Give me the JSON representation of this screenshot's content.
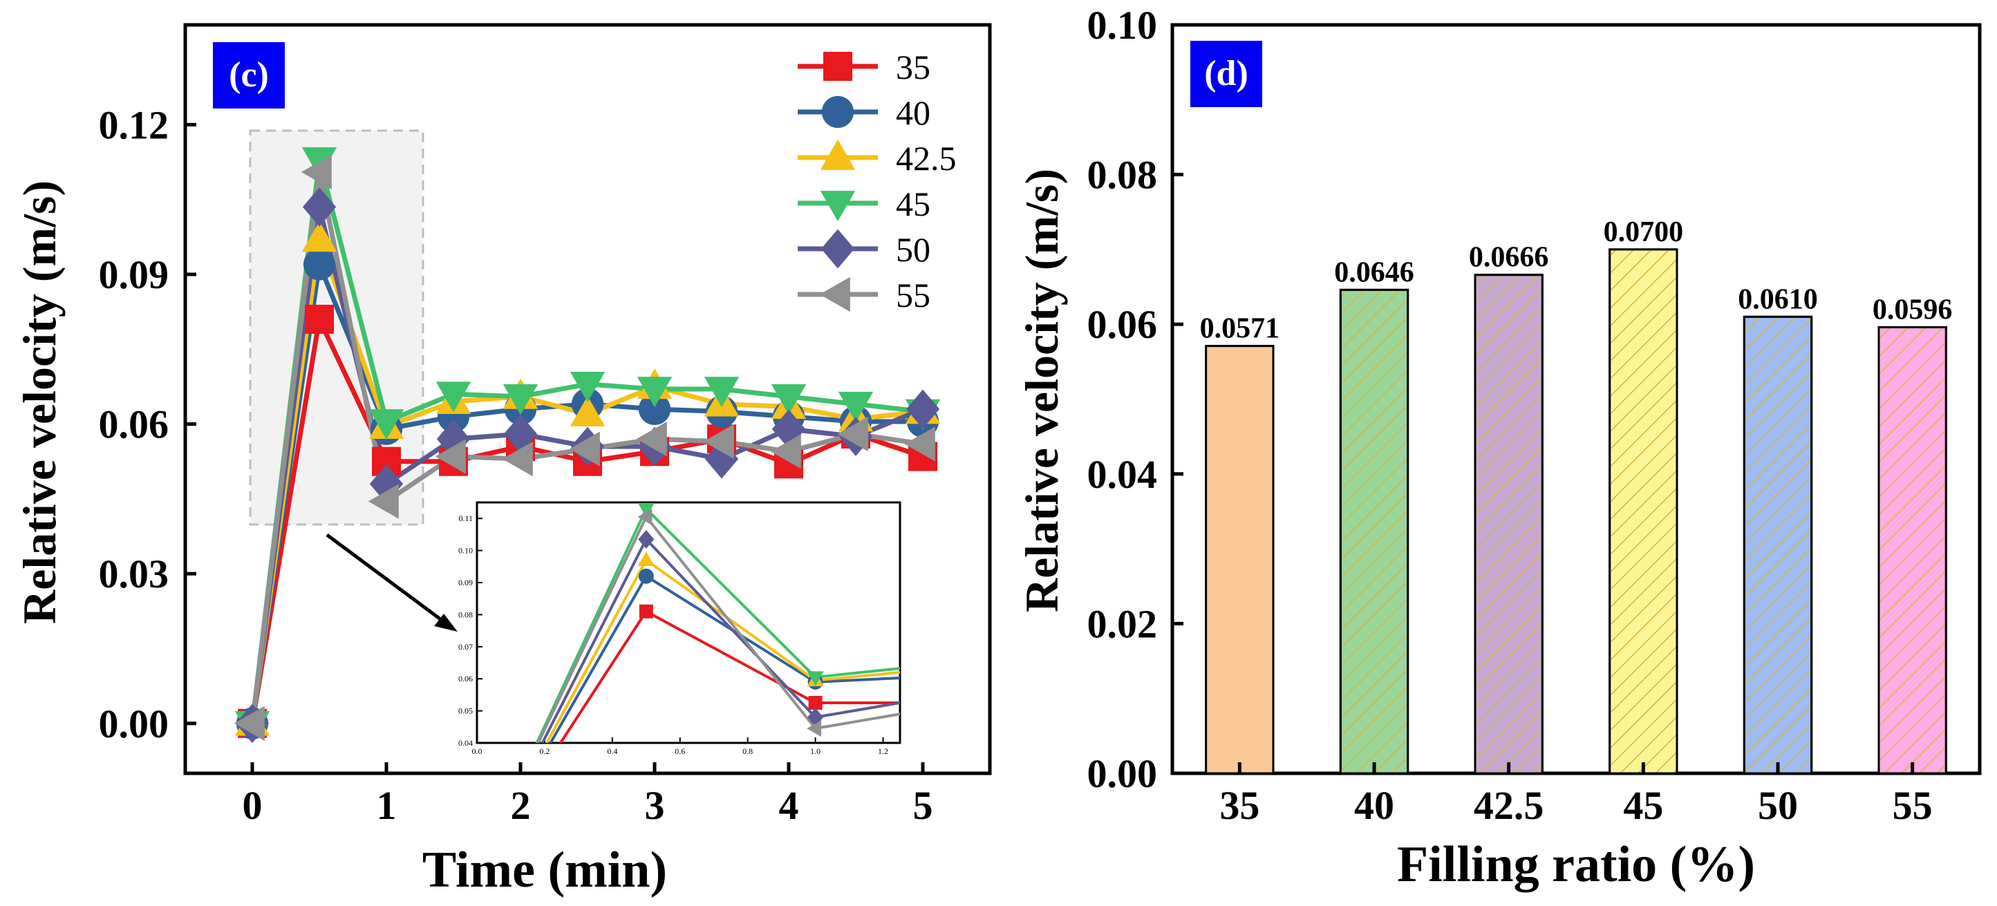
{
  "chart_data": [
    {
      "type": "line",
      "panel_label": "(c)",
      "xlabel": "Time (min)",
      "ylabel": "Relative velocity (m/s)",
      "xlim": [
        -0.5,
        5.5
      ],
      "ylim": [
        -0.01,
        0.14
      ],
      "xticks": [
        "0",
        "1",
        "2",
        "3",
        "4",
        "5"
      ],
      "yticks": [
        "0.00",
        "0.03",
        "0.06",
        "0.09",
        "0.12"
      ],
      "x": [
        0,
        0.5,
        1,
        1.5,
        2,
        2.5,
        3,
        3.5,
        4,
        4.5,
        5
      ],
      "series": [
        {
          "name": "35",
          "color": "#e8191f",
          "marker": "square",
          "values": [
            0,
            0.081,
            0.0525,
            0.0525,
            0.0555,
            0.0525,
            0.0545,
            0.057,
            0.052,
            0.058,
            0.0535
          ]
        },
        {
          "name": "40",
          "color": "#2f6299",
          "marker": "circle",
          "values": [
            0,
            0.092,
            0.059,
            0.0615,
            0.063,
            0.064,
            0.063,
            0.0625,
            0.0615,
            0.0605,
            0.0605
          ]
        },
        {
          "name": "42.5",
          "color": "#f5c017",
          "marker": "triangle-up",
          "values": [
            0,
            0.097,
            0.0595,
            0.0645,
            0.0655,
            0.062,
            0.0675,
            0.064,
            0.0635,
            0.061,
            0.0625
          ]
        },
        {
          "name": "45",
          "color": "#3fc16b",
          "marker": "triangle-down",
          "values": [
            0,
            0.113,
            0.0605,
            0.066,
            0.0655,
            0.068,
            0.067,
            0.067,
            0.0655,
            0.064,
            0.0625
          ]
        },
        {
          "name": "50",
          "color": "#5a5a96",
          "marker": "diamond",
          "values": [
            0,
            0.1035,
            0.048,
            0.057,
            0.058,
            0.0555,
            0.0555,
            0.053,
            0.059,
            0.0575,
            0.063
          ]
        },
        {
          "name": "55",
          "color": "#909090",
          "marker": "triangle-left",
          "values": [
            0,
            0.1105,
            0.0445,
            0.0535,
            0.053,
            0.055,
            0.057,
            0.0565,
            0.0545,
            0.058,
            0.056
          ]
        }
      ],
      "inset": {
        "xlim": [
          0,
          1.25
        ],
        "ylim": [
          0.04,
          0.115
        ],
        "xticks": [
          "0.0",
          "0.2",
          "0.4",
          "0.6",
          "0.8",
          "1.0",
          "1.2"
        ],
        "yticks": [
          "0.04",
          "0.05",
          "0.06",
          "0.07",
          "0.08",
          "0.09",
          "0.10",
          "0.11"
        ]
      }
    },
    {
      "type": "bar",
      "panel_label": "(d)",
      "xlabel": "Filling ratio (%)",
      "ylabel": "Relative velocity (m/s)",
      "ylim": [
        0,
        0.1
      ],
      "yticks": [
        "0.00",
        "0.02",
        "0.04",
        "0.06",
        "0.08",
        "0.10"
      ],
      "categories": [
        "35",
        "40",
        "42.5",
        "45",
        "50",
        "55"
      ],
      "values": [
        0.0571,
        0.0646,
        0.0666,
        0.07,
        0.061,
        0.0596
      ],
      "value_labels": [
        "0.0571",
        "0.0646",
        "0.0666",
        "0.0700",
        "0.0610",
        "0.0596"
      ],
      "colors": [
        "#fbc997",
        "#9ad59a",
        "#c6a8d2",
        "#fbf595",
        "#9fbcf3",
        "#fdace6"
      ],
      "hatch_colors": [
        null,
        "#d6b640",
        "#d6b640",
        "#d6b640",
        "#d6b640",
        "#d6b640"
      ]
    }
  ]
}
